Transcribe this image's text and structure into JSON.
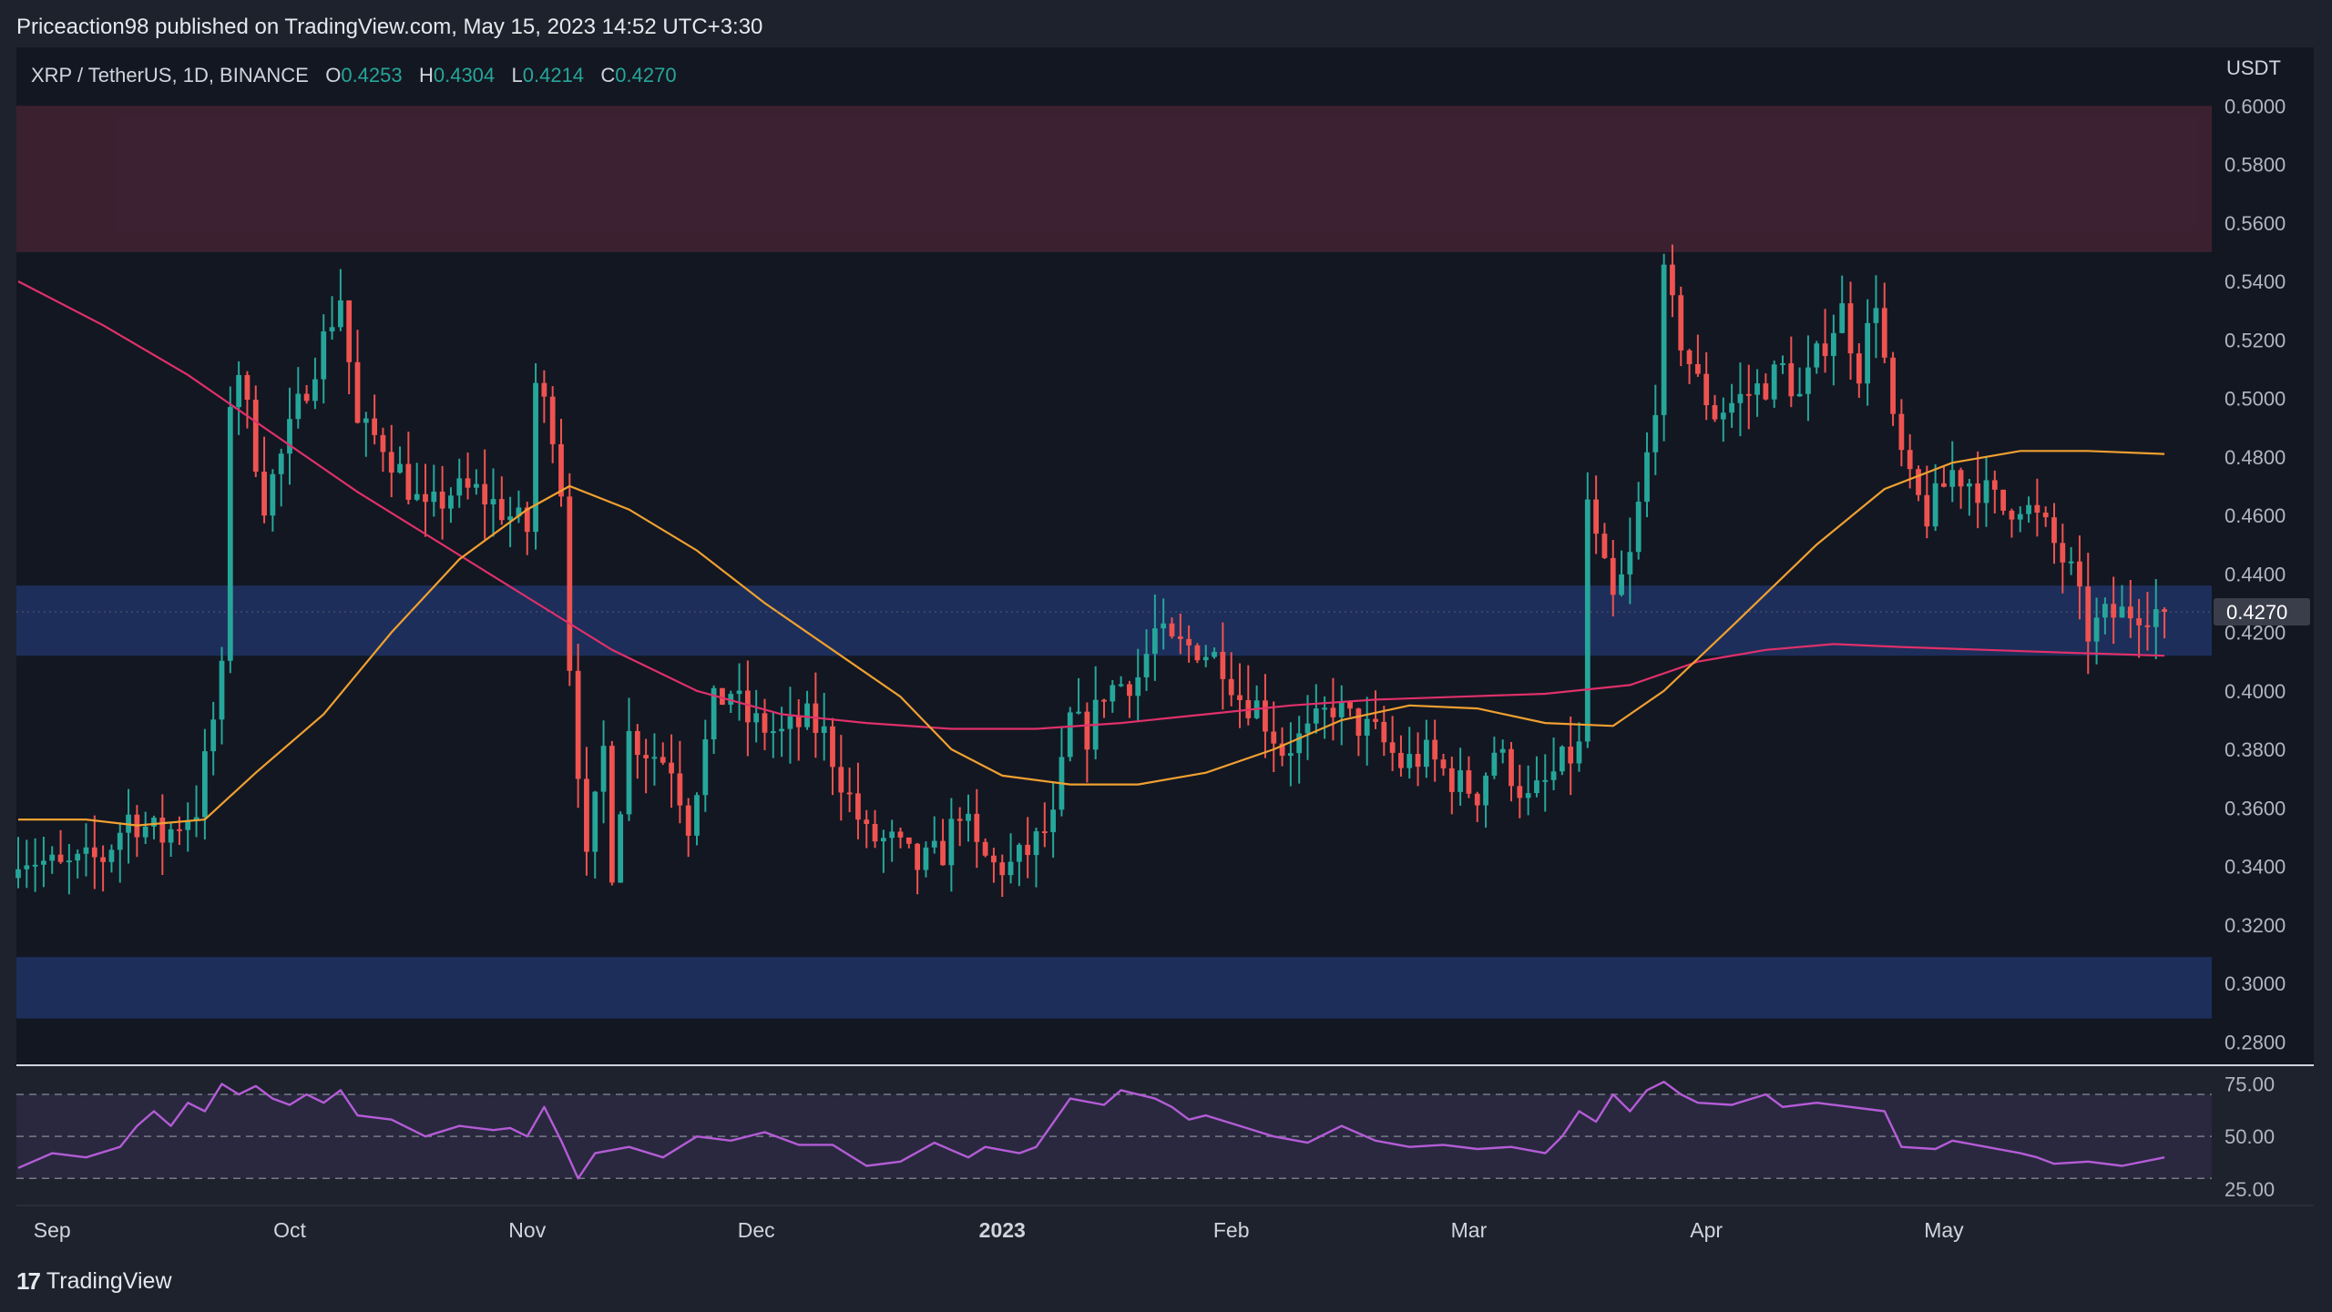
{
  "header": {
    "attribution": "Priceaction98 published on TradingView.com, May 15, 2023 14:52 UTC+3:30"
  },
  "footer": {
    "brand": "TradingView",
    "brand_mark": "17"
  },
  "colors": {
    "background": "#131722",
    "frame": "#1e222d",
    "up": "#26a69a",
    "down": "#ef5350",
    "ma_short": "#f0a030",
    "ma_long": "#e0306a",
    "rsi": "#b45cd6",
    "resistance_zone": "#3d2232",
    "support_zone": "#1e2f5e"
  },
  "chart_data": [
    {
      "type": "candlestick",
      "symbol": "XRP / TetherUS, 1D, BINANCE",
      "legend": {
        "o_label": "O",
        "o": "0.4253",
        "h_label": "H",
        "h": "0.4304",
        "l_label": "L",
        "l": "0.4214",
        "c_label": "C",
        "c": "0.4270"
      },
      "currency_label": "USDT",
      "last_price_label": "0.4270",
      "last_price": 0.427,
      "ylim": [
        0.272,
        0.62
      ],
      "y_ticks": [
        {
          "v": 0.28,
          "label": "0.2800"
        },
        {
          "v": 0.3,
          "label": "0.3000"
        },
        {
          "v": 0.32,
          "label": "0.3200"
        },
        {
          "v": 0.34,
          "label": "0.3400"
        },
        {
          "v": 0.36,
          "label": "0.3600"
        },
        {
          "v": 0.38,
          "label": "0.3800"
        },
        {
          "v": 0.4,
          "label": "0.4000"
        },
        {
          "v": 0.42,
          "label": "0.4200"
        },
        {
          "v": 0.44,
          "label": "0.4400"
        },
        {
          "v": 0.46,
          "label": "0.4600"
        },
        {
          "v": 0.48,
          "label": "0.4800"
        },
        {
          "v": 0.5,
          "label": "0.5000"
        },
        {
          "v": 0.52,
          "label": "0.5200"
        },
        {
          "v": 0.54,
          "label": "0.5400"
        },
        {
          "v": 0.56,
          "label": "0.5600"
        },
        {
          "v": 0.58,
          "label": "0.5800"
        },
        {
          "v": 0.6,
          "label": "0.6000"
        }
      ],
      "x_range_days": [
        0,
        256
      ],
      "x_ticks": [
        {
          "day": 4,
          "label": "Sep"
        },
        {
          "day": 32,
          "label": "Oct"
        },
        {
          "day": 60,
          "label": "Nov"
        },
        {
          "day": 87,
          "label": "Dec"
        },
        {
          "day": 116,
          "label": "2023",
          "bold": true
        },
        {
          "day": 143,
          "label": "Feb"
        },
        {
          "day": 171,
          "label": "Mar"
        },
        {
          "day": 199,
          "label": "Apr"
        },
        {
          "day": 227,
          "label": "May"
        }
      ],
      "zones": [
        {
          "name": "resistance",
          "from": 0.55,
          "to": 0.6
        },
        {
          "name": "support-upper",
          "from": 0.412,
          "to": 0.436
        },
        {
          "name": "support-lower",
          "from": 0.288,
          "to": 0.309
        }
      ],
      "price_path": [
        [
          0,
          0.345
        ],
        [
          5,
          0.339
        ],
        [
          10,
          0.343
        ],
        [
          13,
          0.357
        ],
        [
          17,
          0.35
        ],
        [
          21,
          0.36
        ],
        [
          24,
          0.405
        ],
        [
          25,
          0.5
        ],
        [
          26,
          0.51
        ],
        [
          29,
          0.465
        ],
        [
          31,
          0.48
        ],
        [
          34,
          0.505
        ],
        [
          38,
          0.535
        ],
        [
          40,
          0.49
        ],
        [
          43,
          0.485
        ],
        [
          46,
          0.47
        ],
        [
          48,
          0.46
        ],
        [
          51,
          0.468
        ],
        [
          54,
          0.468
        ],
        [
          57,
          0.462
        ],
        [
          60,
          0.455
        ],
        [
          61,
          0.505
        ],
        [
          63,
          0.49
        ],
        [
          64,
          0.47
        ],
        [
          65,
          0.41
        ],
        [
          67,
          0.34
        ],
        [
          69,
          0.38
        ],
        [
          70,
          0.34
        ],
        [
          72,
          0.385
        ],
        [
          74,
          0.38
        ],
        [
          77,
          0.375
        ],
        [
          79,
          0.355
        ],
        [
          82,
          0.395
        ],
        [
          84,
          0.4
        ],
        [
          86,
          0.39
        ],
        [
          90,
          0.385
        ],
        [
          93,
          0.39
        ],
        [
          95,
          0.385
        ],
        [
          97,
          0.37
        ],
        [
          100,
          0.35
        ],
        [
          103,
          0.348
        ],
        [
          106,
          0.34
        ],
        [
          109,
          0.345
        ],
        [
          111,
          0.36
        ],
        [
          113,
          0.345
        ],
        [
          115,
          0.34
        ],
        [
          117,
          0.34
        ],
        [
          119,
          0.345
        ],
        [
          122,
          0.355
        ],
        [
          124,
          0.39
        ],
        [
          126,
          0.385
        ],
        [
          128,
          0.4
        ],
        [
          132,
          0.405
        ],
        [
          134,
          0.42
        ],
        [
          136,
          0.415
        ],
        [
          139,
          0.415
        ],
        [
          142,
          0.41
        ],
        [
          144,
          0.398
        ],
        [
          146,
          0.395
        ],
        [
          149,
          0.38
        ],
        [
          152,
          0.385
        ],
        [
          155,
          0.395
        ],
        [
          157,
          0.39
        ],
        [
          160,
          0.385
        ],
        [
          163,
          0.375
        ],
        [
          166,
          0.378
        ],
        [
          169,
          0.37
        ],
        [
          172,
          0.365
        ],
        [
          174,
          0.38
        ],
        [
          176,
          0.372
        ],
        [
          178,
          0.362
        ],
        [
          180,
          0.368
        ],
        [
          182,
          0.375
        ],
        [
          184,
          0.38
        ],
        [
          185,
          0.465
        ],
        [
          186,
          0.45
        ],
        [
          188,
          0.43
        ],
        [
          190,
          0.445
        ],
        [
          192,
          0.48
        ],
        [
          193,
          0.5
        ],
        [
          194,
          0.54
        ],
        [
          196,
          0.52
        ],
        [
          198,
          0.505
        ],
        [
          200,
          0.495
        ],
        [
          203,
          0.5
        ],
        [
          206,
          0.505
        ],
        [
          208,
          0.51
        ],
        [
          210,
          0.5
        ],
        [
          213,
          0.52
        ],
        [
          215,
          0.53
        ],
        [
          217,
          0.51
        ],
        [
          219,
          0.535
        ],
        [
          221,
          0.49
        ],
        [
          223,
          0.47
        ],
        [
          225,
          0.46
        ],
        [
          228,
          0.475
        ],
        [
          231,
          0.47
        ],
        [
          234,
          0.462
        ],
        [
          236,
          0.465
        ],
        [
          239,
          0.455
        ],
        [
          242,
          0.44
        ],
        [
          244,
          0.42
        ],
        [
          246,
          0.425
        ],
        [
          250,
          0.428
        ],
        [
          253,
          0.427
        ]
      ],
      "ma_short": [
        [
          0,
          0.356
        ],
        [
          8,
          0.356
        ],
        [
          14,
          0.354
        ],
        [
          22,
          0.356
        ],
        [
          28,
          0.372
        ],
        [
          36,
          0.392
        ],
        [
          44,
          0.42
        ],
        [
          52,
          0.445
        ],
        [
          60,
          0.462
        ],
        [
          65,
          0.47
        ],
        [
          72,
          0.462
        ],
        [
          80,
          0.448
        ],
        [
          88,
          0.43
        ],
        [
          96,
          0.414
        ],
        [
          104,
          0.398
        ],
        [
          110,
          0.38
        ],
        [
          116,
          0.371
        ],
        [
          124,
          0.368
        ],
        [
          132,
          0.368
        ],
        [
          140,
          0.372
        ],
        [
          148,
          0.38
        ],
        [
          156,
          0.39
        ],
        [
          164,
          0.395
        ],
        [
          172,
          0.394
        ],
        [
          180,
          0.389
        ],
        [
          188,
          0.388
        ],
        [
          194,
          0.4
        ],
        [
          202,
          0.422
        ],
        [
          212,
          0.45
        ],
        [
          220,
          0.469
        ],
        [
          228,
          0.478
        ],
        [
          236,
          0.482
        ],
        [
          244,
          0.482
        ],
        [
          253,
          0.481
        ]
      ],
      "ma_long": [
        [
          0,
          0.54
        ],
        [
          10,
          0.525
        ],
        [
          20,
          0.508
        ],
        [
          30,
          0.488
        ],
        [
          40,
          0.468
        ],
        [
          50,
          0.45
        ],
        [
          60,
          0.432
        ],
        [
          70,
          0.414
        ],
        [
          80,
          0.4
        ],
        [
          90,
          0.392
        ],
        [
          100,
          0.389
        ],
        [
          110,
          0.387
        ],
        [
          120,
          0.387
        ],
        [
          130,
          0.389
        ],
        [
          140,
          0.392
        ],
        [
          150,
          0.395
        ],
        [
          160,
          0.397
        ],
        [
          170,
          0.398
        ],
        [
          180,
          0.399
        ],
        [
          190,
          0.402
        ],
        [
          198,
          0.41
        ],
        [
          206,
          0.414
        ],
        [
          214,
          0.416
        ],
        [
          222,
          0.415
        ],
        [
          232,
          0.414
        ],
        [
          242,
          0.413
        ],
        [
          253,
          0.412
        ]
      ]
    },
    {
      "type": "line",
      "indicator": "RSI",
      "ylim": [
        18,
        83
      ],
      "y_ticks": [
        {
          "v": 25,
          "label": "25.00"
        },
        {
          "v": 50,
          "label": "50.00"
        },
        {
          "v": 75,
          "label": "75.00"
        }
      ],
      "band": [
        30,
        70
      ],
      "points": [
        [
          0,
          35
        ],
        [
          4,
          42
        ],
        [
          8,
          40
        ],
        [
          12,
          45
        ],
        [
          14,
          55
        ],
        [
          16,
          62
        ],
        [
          18,
          55
        ],
        [
          20,
          66
        ],
        [
          22,
          62
        ],
        [
          24,
          75
        ],
        [
          26,
          70
        ],
        [
          28,
          74
        ],
        [
          30,
          68
        ],
        [
          32,
          65
        ],
        [
          34,
          70
        ],
        [
          36,
          66
        ],
        [
          38,
          72
        ],
        [
          40,
          60
        ],
        [
          44,
          58
        ],
        [
          48,
          50
        ],
        [
          52,
          55
        ],
        [
          56,
          53
        ],
        [
          58,
          54
        ],
        [
          60,
          50
        ],
        [
          62,
          64
        ],
        [
          64,
          48
        ],
        [
          66,
          30
        ],
        [
          68,
          42
        ],
        [
          72,
          45
        ],
        [
          76,
          40
        ],
        [
          80,
          50
        ],
        [
          84,
          48
        ],
        [
          88,
          52
        ],
        [
          92,
          46
        ],
        [
          96,
          46
        ],
        [
          100,
          36
        ],
        [
          104,
          38
        ],
        [
          108,
          47
        ],
        [
          112,
          40
        ],
        [
          114,
          45
        ],
        [
          118,
          42
        ],
        [
          120,
          45
        ],
        [
          124,
          68
        ],
        [
          128,
          65
        ],
        [
          130,
          72
        ],
        [
          134,
          68
        ],
        [
          136,
          64
        ],
        [
          138,
          58
        ],
        [
          140,
          60
        ],
        [
          144,
          55
        ],
        [
          148,
          50
        ],
        [
          152,
          47
        ],
        [
          156,
          55
        ],
        [
          160,
          48
        ],
        [
          164,
          45
        ],
        [
          168,
          46
        ],
        [
          172,
          44
        ],
        [
          176,
          45
        ],
        [
          180,
          42
        ],
        [
          182,
          50
        ],
        [
          184,
          62
        ],
        [
          186,
          57
        ],
        [
          188,
          70
        ],
        [
          190,
          62
        ],
        [
          192,
          72
        ],
        [
          194,
          76
        ],
        [
          196,
          70
        ],
        [
          198,
          66
        ],
        [
          202,
          65
        ],
        [
          206,
          70
        ],
        [
          208,
          64
        ],
        [
          212,
          66
        ],
        [
          216,
          64
        ],
        [
          220,
          62
        ],
        [
          222,
          45
        ],
        [
          226,
          44
        ],
        [
          228,
          48
        ],
        [
          232,
          45
        ],
        [
          236,
          42
        ],
        [
          238,
          40
        ],
        [
          240,
          37
        ],
        [
          244,
          38
        ],
        [
          248,
          36
        ],
        [
          253,
          40
        ]
      ]
    }
  ]
}
